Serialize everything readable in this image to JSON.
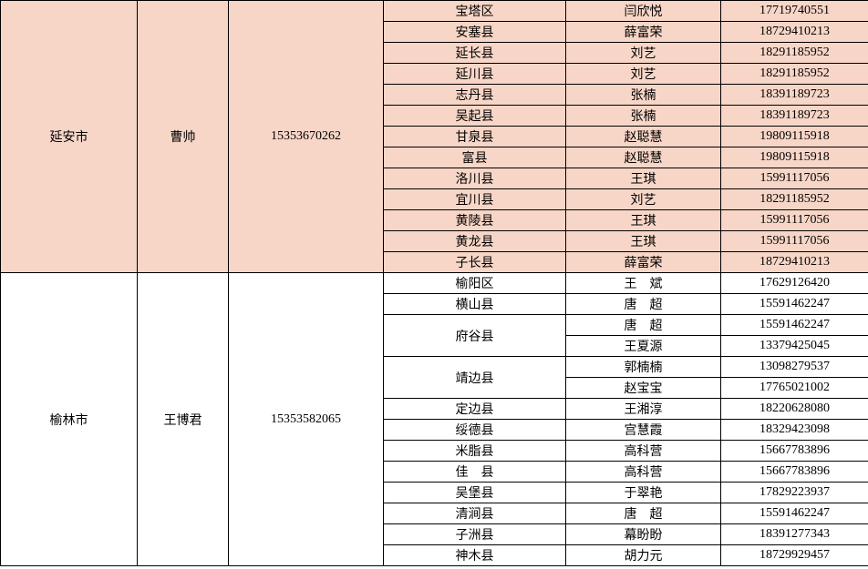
{
  "colors": {
    "pink": "#f7d6c7",
    "white": "#ffffff",
    "border": "#000000"
  },
  "cities": [
    {
      "name": "延安市",
      "manager": "曹帅",
      "manager_phone": "15353670262",
      "bg": "pink",
      "rows": [
        {
          "district": "宝塔区",
          "person": "闫欣悦",
          "phone": "17719740551"
        },
        {
          "district": "安塞县",
          "person": "薛富荣",
          "phone": "18729410213"
        },
        {
          "district": "延长县",
          "person": "刘艺",
          "phone": "18291185952"
        },
        {
          "district": "延川县",
          "person": "刘艺",
          "phone": "18291185952"
        },
        {
          "district": "志丹县",
          "person": "张楠",
          "phone": "18391189723"
        },
        {
          "district": "吴起县",
          "person": "张楠",
          "phone": "18391189723"
        },
        {
          "district": "甘泉县",
          "person": "赵聪慧",
          "phone": "19809115918"
        },
        {
          "district": "富县",
          "person": "赵聪慧",
          "phone": "19809115918"
        },
        {
          "district": "洛川县",
          "person": "王琪",
          "phone": "15991117056"
        },
        {
          "district": "宜川县",
          "person": "刘艺",
          "phone": "18291185952"
        },
        {
          "district": "黄陵县",
          "person": "王琪",
          "phone": "15991117056"
        },
        {
          "district": "黄龙县",
          "person": "王琪",
          "phone": "15991117056"
        },
        {
          "district": "子长县",
          "person": "薛富荣",
          "phone": "18729410213"
        }
      ]
    },
    {
      "name": "榆林市",
      "manager": "王博君",
      "manager_phone": "15353582065",
      "bg": "white",
      "rows": [
        {
          "district": "榆阳区",
          "person": "王　斌",
          "phone": "17629126420"
        },
        {
          "district": "横山县",
          "person": "唐　超",
          "phone": "15591462247"
        },
        {
          "district": "府谷县",
          "rowspan": 2,
          "person": "唐　超",
          "phone": "15591462247"
        },
        {
          "person": "王夏源",
          "phone": "13379425045"
        },
        {
          "district": "靖边县",
          "rowspan": 2,
          "person": "郭楠楠",
          "phone": "13098279537"
        },
        {
          "person": "赵宝宝",
          "phone": "17765021002"
        },
        {
          "district": "定边县",
          "person": "王湘淳",
          "phone": "18220628080"
        },
        {
          "district": "绥德县",
          "person": "宫慧霞",
          "phone": "18329423098"
        },
        {
          "district": "米脂县",
          "person": "高科营",
          "phone": "15667783896"
        },
        {
          "district": "佳　县",
          "person": "高科营",
          "phone": "15667783896"
        },
        {
          "district": "吴堡县",
          "person": "于翠艳",
          "phone": "17829223937"
        },
        {
          "district": "清涧县",
          "person": "唐　超",
          "phone": "15591462247"
        },
        {
          "district": "子洲县",
          "person": "幕盼盼",
          "phone": "18391277343"
        },
        {
          "district": "神木县",
          "person": "胡力元",
          "phone": "18729929457"
        }
      ]
    }
  ]
}
